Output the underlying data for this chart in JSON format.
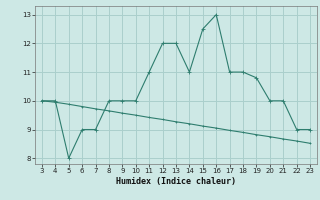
{
  "xlabel": "Humidex (Indice chaleur)",
  "x_main": [
    3,
    4,
    5,
    6,
    7,
    8,
    9,
    10,
    11,
    12,
    13,
    14,
    15,
    16,
    17,
    18,
    19,
    20,
    21,
    22,
    23
  ],
  "y_main": [
    10,
    10,
    8,
    9,
    9,
    10,
    10,
    10,
    11,
    12,
    12,
    11,
    12.5,
    13,
    11,
    11,
    10.8,
    10,
    10,
    9,
    9
  ],
  "x_ref": [
    3,
    4,
    5,
    6,
    7,
    8,
    9,
    10,
    11,
    12,
    13,
    14,
    15,
    16,
    17,
    18,
    19,
    20,
    21,
    22,
    23
  ],
  "y_ref": [
    10,
    9.95,
    9.88,
    9.8,
    9.72,
    9.65,
    9.57,
    9.5,
    9.42,
    9.35,
    9.27,
    9.2,
    9.12,
    9.05,
    8.97,
    8.9,
    8.82,
    8.75,
    8.67,
    8.6,
    8.52
  ],
  "line_color": "#2e7d6e",
  "bg_color": "#cde8e5",
  "grid_color": "#aacfcc",
  "ylim": [
    7.8,
    13.3
  ],
  "xlim": [
    2.5,
    23.5
  ],
  "yticks": [
    8,
    9,
    10,
    11,
    12,
    13
  ],
  "xticks": [
    3,
    4,
    5,
    6,
    7,
    8,
    9,
    10,
    11,
    12,
    13,
    14,
    15,
    16,
    17,
    18,
    19,
    20,
    21,
    22,
    23
  ]
}
